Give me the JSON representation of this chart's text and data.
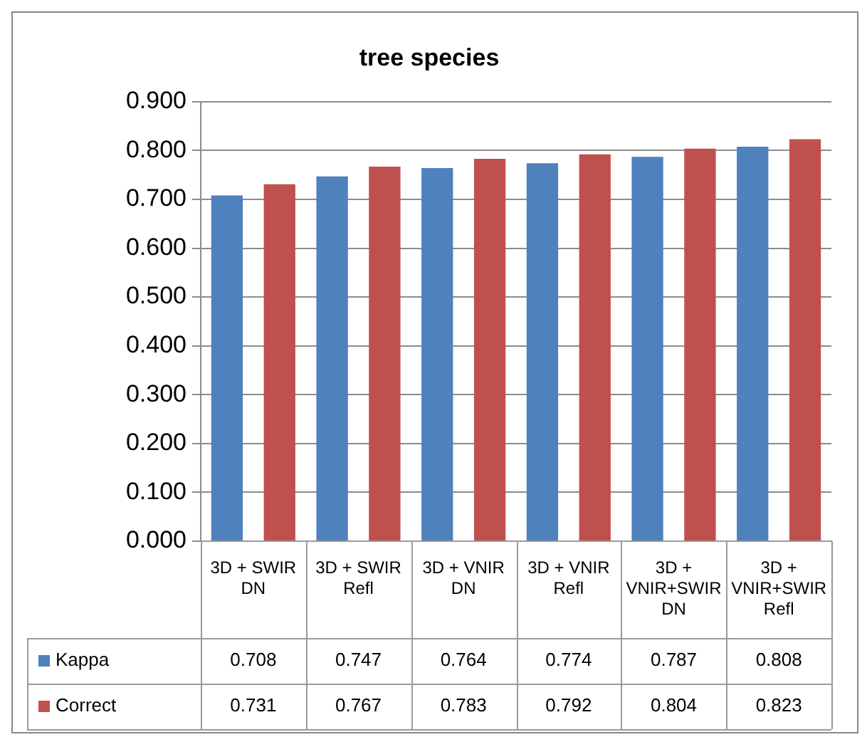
{
  "chart_data": {
    "type": "bar",
    "title": "tree species",
    "categories": [
      "3D + SWIR DN",
      "3D + SWIR Refl",
      "3D + VNIR DN",
      "3D + VNIR Refl",
      "3D + VNIR+SWIR DN",
      "3D + VNIR+SWIR Refl"
    ],
    "series": [
      {
        "name": "Kappa",
        "color": "#4f81bd",
        "values": [
          0.708,
          0.747,
          0.764,
          0.774,
          0.787,
          0.808
        ]
      },
      {
        "name": "Correct",
        "color": "#c0504d",
        "values": [
          0.731,
          0.767,
          0.783,
          0.792,
          0.804,
          0.823
        ]
      }
    ],
    "ylim": [
      0,
      0.9
    ],
    "yticks": [
      {
        "value": 0,
        "label": "0.000"
      },
      {
        "value": 0.1,
        "label": "0.100"
      },
      {
        "value": 0.2,
        "label": "0.200"
      },
      {
        "value": 0.3,
        "label": "0.300"
      },
      {
        "value": 0.4,
        "label": "0.400"
      },
      {
        "value": 0.5,
        "label": "0.500"
      },
      {
        "value": 0.6,
        "label": "0.600"
      },
      {
        "value": 0.7,
        "label": "0.700"
      },
      {
        "value": 0.8,
        "label": "0.800"
      },
      {
        "value": 0.9,
        "label": "0.900"
      }
    ],
    "grid": "y",
    "legend": "bottom",
    "data_labels": true
  }
}
